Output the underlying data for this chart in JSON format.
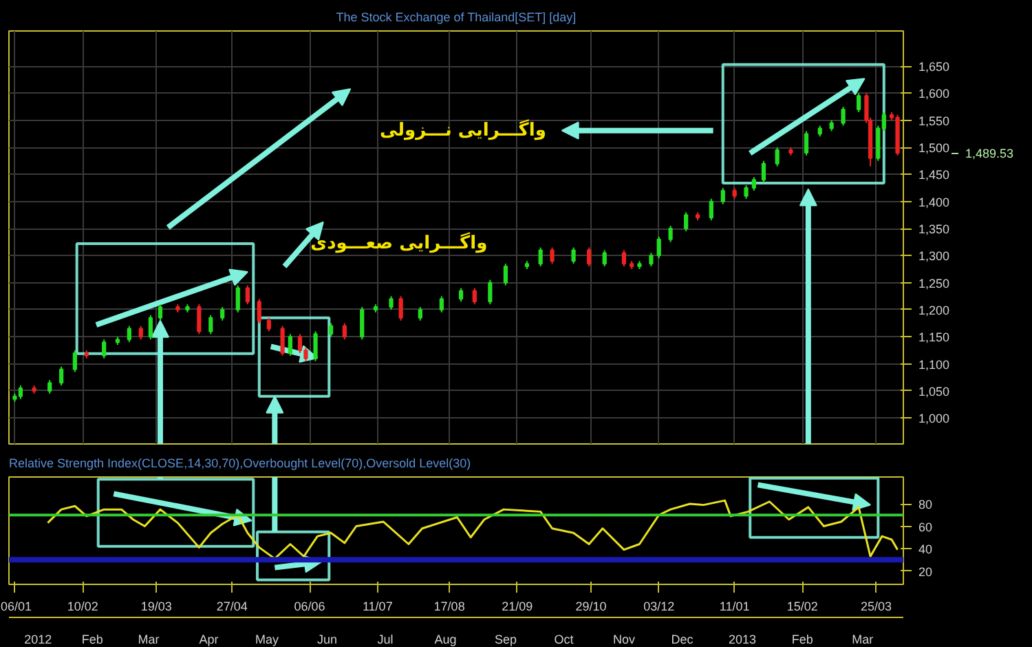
{
  "chart_data": [
    {
      "type": "candlestick",
      "title": "The Stock Exchange of Thailand[SET] [day]",
      "x": [
        "2012-01-06",
        "2012-01-09",
        "2012-01-16",
        "2012-01-24",
        "2012-01-30",
        "2012-02-06",
        "2012-02-12",
        "2012-02-21",
        "2012-02-28",
        "2012-03-05",
        "2012-03-11",
        "2012-03-16",
        "2012-03-21",
        "2012-03-30",
        "2012-04-04",
        "2012-04-10",
        "2012-04-16",
        "2012-04-22",
        "2012-04-30",
        "2012-05-05",
        "2012-05-11",
        "2012-05-16",
        "2012-05-23",
        "2012-05-27",
        "2012-06-01",
        "2012-06-04",
        "2012-06-09",
        "2012-06-17",
        "2012-06-24",
        "2012-07-03",
        "2012-07-10",
        "2012-07-18",
        "2012-07-23",
        "2012-08-02",
        "2012-08-13",
        "2012-08-23",
        "2012-08-30",
        "2012-09-07",
        "2012-09-15",
        "2012-09-26",
        "2012-10-03",
        "2012-10-09",
        "2012-10-20",
        "2012-10-28",
        "2012-11-05",
        "2012-11-15",
        "2012-11-19",
        "2012-11-23",
        "2012-11-29",
        "2012-12-03",
        "2012-12-09",
        "2012-12-17",
        "2012-12-23",
        "2012-12-30",
        "2013-01-05",
        "2013-01-11",
        "2013-01-17",
        "2013-01-21",
        "2013-01-26",
        "2013-02-02",
        "2013-02-09",
        "2013-02-17",
        "2013-02-24",
        "2013-03-02",
        "2013-03-08",
        "2013-03-16",
        "2013-03-20",
        "2013-03-22",
        "2013-03-26",
        "2013-03-29",
        "2013-04-02",
        "2013-04-05"
      ],
      "ohlc": [
        [
          1035,
          1045,
          1030,
          1040
        ],
        [
          1040,
          1060,
          1035,
          1055
        ],
        [
          1055,
          1060,
          1045,
          1050
        ],
        [
          1050,
          1070,
          1045,
          1065
        ],
        [
          1065,
          1095,
          1060,
          1090
        ],
        [
          1090,
          1125,
          1085,
          1120
        ],
        [
          1120,
          1125,
          1110,
          1115
        ],
        [
          1115,
          1145,
          1110,
          1140
        ],
        [
          1140,
          1150,
          1135,
          1145
        ],
        [
          1145,
          1170,
          1140,
          1165
        ],
        [
          1165,
          1170,
          1145,
          1150
        ],
        [
          1150,
          1190,
          1145,
          1185
        ],
        [
          1185,
          1210,
          1180,
          1205
        ],
        [
          1205,
          1210,
          1195,
          1200
        ],
        [
          1200,
          1210,
          1195,
          1205
        ],
        [
          1205,
          1210,
          1155,
          1160
        ],
        [
          1160,
          1190,
          1155,
          1185
        ],
        [
          1185,
          1205,
          1180,
          1200
        ],
        [
          1200,
          1245,
          1195,
          1240
        ],
        [
          1240,
          1245,
          1210,
          1215
        ],
        [
          1215,
          1220,
          1175,
          1180
        ],
        [
          1180,
          1185,
          1160,
          1165
        ],
        [
          1165,
          1170,
          1115,
          1120
        ],
        [
          1120,
          1155,
          1115,
          1150
        ],
        [
          1150,
          1155,
          1120,
          1125
        ],
        [
          1125,
          1130,
          1105,
          1110
        ],
        [
          1110,
          1160,
          1105,
          1155
        ],
        [
          1155,
          1175,
          1150,
          1170
        ],
        [
          1170,
          1175,
          1145,
          1150
        ],
        [
          1150,
          1205,
          1145,
          1200
        ],
        [
          1200,
          1210,
          1195,
          1205
        ],
        [
          1205,
          1225,
          1200,
          1220
        ],
        [
          1220,
          1225,
          1180,
          1185
        ],
        [
          1185,
          1205,
          1180,
          1200
        ],
        [
          1200,
          1225,
          1195,
          1220
        ],
        [
          1220,
          1240,
          1215,
          1235
        ],
        [
          1235,
          1240,
          1210,
          1215
        ],
        [
          1215,
          1255,
          1210,
          1250
        ],
        [
          1250,
          1285,
          1245,
          1280
        ],
        [
          1280,
          1290,
          1275,
          1285
        ],
        [
          1285,
          1315,
          1280,
          1310
        ],
        [
          1310,
          1315,
          1285,
          1290
        ],
        [
          1290,
          1315,
          1285,
          1310
        ],
        [
          1310,
          1315,
          1280,
          1285
        ],
        [
          1285,
          1310,
          1280,
          1305
        ],
        [
          1305,
          1310,
          1280,
          1285
        ],
        [
          1285,
          1290,
          1275,
          1280
        ],
        [
          1280,
          1290,
          1275,
          1285
        ],
        [
          1285,
          1305,
          1280,
          1300
        ],
        [
          1300,
          1335,
          1295,
          1330
        ],
        [
          1330,
          1355,
          1325,
          1350
        ],
        [
          1350,
          1380,
          1345,
          1375
        ],
        [
          1375,
          1380,
          1365,
          1370
        ],
        [
          1370,
          1405,
          1365,
          1400
        ],
        [
          1400,
          1425,
          1395,
          1420
        ],
        [
          1420,
          1425,
          1405,
          1410
        ],
        [
          1410,
          1430,
          1405,
          1425
        ],
        [
          1425,
          1445,
          1420,
          1440
        ],
        [
          1440,
          1475,
          1435,
          1470
        ],
        [
          1470,
          1500,
          1465,
          1495
        ],
        [
          1495,
          1500,
          1485,
          1490
        ],
        [
          1490,
          1530,
          1485,
          1525
        ],
        [
          1525,
          1540,
          1520,
          1535
        ],
        [
          1535,
          1550,
          1530,
          1545
        ],
        [
          1545,
          1575,
          1540,
          1570
        ],
        [
          1570,
          1600,
          1565,
          1595
        ],
        [
          1595,
          1600,
          1545,
          1550
        ],
        [
          1550,
          1555,
          1465,
          1480
        ],
        [
          1480,
          1540,
          1475,
          1535
        ],
        [
          1535,
          1565,
          1530,
          1560
        ],
        [
          1560,
          1565,
          1550,
          1555
        ],
        [
          1555,
          1560,
          1485,
          1489.53
        ]
      ],
      "colors": [
        "#22dd22",
        "#22dd22",
        "#ee2222",
        "#22dd22",
        "#22dd22",
        "#22dd22",
        "#ee2222",
        "#22dd22",
        "#22dd22",
        "#22dd22",
        "#ee2222",
        "#22dd22",
        "#22dd22",
        "#ee2222",
        "#22dd22",
        "#ee2222",
        "#22dd22",
        "#22dd22",
        "#22dd22",
        "#ee2222",
        "#ee2222",
        "#ee2222",
        "#ee2222",
        "#22dd22",
        "#ee2222",
        "#ee2222",
        "#22dd22",
        "#22dd22",
        "#ee2222",
        "#22dd22",
        "#22dd22",
        "#22dd22",
        "#ee2222",
        "#22dd22",
        "#22dd22",
        "#22dd22",
        "#ee2222",
        "#22dd22",
        "#22dd22",
        "#22dd22",
        "#22dd22",
        "#ee2222",
        "#22dd22",
        "#ee2222",
        "#22dd22",
        "#ee2222",
        "#ee2222",
        "#22dd22",
        "#22dd22",
        "#22dd22",
        "#22dd22",
        "#22dd22",
        "#ee2222",
        "#22dd22",
        "#22dd22",
        "#ee2222",
        "#22dd22",
        "#22dd22",
        "#22dd22",
        "#22dd22",
        "#ee2222",
        "#22dd22",
        "#22dd22",
        "#22dd22",
        "#22dd22",
        "#22dd22",
        "#ee2222",
        "#ee2222",
        "#22dd22",
        "#22dd22",
        "#ee2222",
        "#ee2222"
      ],
      "xlim": [
        "2012-01-03",
        "2013-04-08"
      ],
      "xticks": [
        {
          "value": "2012-01-06",
          "label": null
        },
        {
          "value": "2012-02-10",
          "label": null
        },
        {
          "value": "2012-03-19",
          "label": null
        },
        {
          "value": "2012-04-27",
          "label": null
        },
        {
          "value": "2012-06-06",
          "label": null
        },
        {
          "value": "2012-07-11",
          "label": null
        },
        {
          "value": "2012-08-17",
          "label": null
        },
        {
          "value": "2012-09-21",
          "label": null
        },
        {
          "value": "2012-10-29",
          "label": null
        },
        {
          "value": "2012-12-03",
          "label": null
        },
        {
          "value": "2013-01-11",
          "label": null
        },
        {
          "value": "2013-02-15",
          "label": null
        },
        {
          "value": "2013-03-25",
          "label": null
        }
      ],
      "ylim": [
        952,
        1715
      ],
      "yticks": [
        {
          "value": 1000,
          "label": "1,000"
        },
        {
          "value": 1050,
          "label": "1,050"
        },
        {
          "value": 1100,
          "label": "1,100"
        },
        {
          "value": 1150,
          "label": "1,150"
        },
        {
          "value": 1200,
          "label": "1,200"
        },
        {
          "value": 1250,
          "label": "1,250"
        },
        {
          "value": 1300,
          "label": "1,300"
        },
        {
          "value": 1350,
          "label": "1,350"
        },
        {
          "value": 1400,
          "label": "1,400"
        },
        {
          "value": 1450,
          "label": "1,450"
        },
        {
          "value": 1500,
          "label": "1,500"
        },
        {
          "value": 1550,
          "label": "1,550"
        },
        {
          "value": 1600,
          "label": "1,600"
        },
        {
          "value": 1650,
          "label": "1,650"
        }
      ],
      "tick_labels": "y",
      "grid": true,
      "annotations": [
        "واگـــرایی نـــزولی",
        "واگـــرایی صعـــودی",
        "1,489.53"
      ]
    },
    {
      "type": "line",
      "title": "Relative Strength Index(CLOSE,14,30,70),Overbought Level(70),Oversold Level(30)",
      "series": [
        {
          "color": "#e8e020",
          "x": [
            "2012-01-23",
            "2012-01-30",
            "2012-02-06",
            "2012-02-12",
            "2012-02-21",
            "2012-03-01",
            "2012-03-07",
            "2012-03-13",
            "2012-03-21",
            "2012-03-30",
            "2012-04-10",
            "2012-04-16",
            "2012-04-22",
            "2012-04-30",
            "2012-05-05",
            "2012-05-11",
            "2012-05-19",
            "2012-05-27",
            "2012-06-03",
            "2012-06-10",
            "2012-06-17",
            "2012-06-24",
            "2012-06-30",
            "2012-07-14",
            "2012-07-27",
            "2012-08-03",
            "2012-08-21",
            "2012-08-28",
            "2012-09-04",
            "2012-09-14",
            "2012-10-03",
            "2012-10-09",
            "2012-10-20",
            "2012-10-28",
            "2012-11-04",
            "2012-11-15",
            "2012-11-23",
            "2012-12-03",
            "2012-12-09",
            "2012-12-19",
            "2012-12-26",
            "2013-01-06",
            "2013-01-09",
            "2013-01-18",
            "2013-01-29",
            "2013-02-08",
            "2013-02-18",
            "2013-02-26",
            "2013-03-07",
            "2013-03-16",
            "2013-03-22",
            "2013-03-28",
            "2013-04-02",
            "2013-04-05"
          ],
          "values": [
            63,
            75,
            78,
            69,
            75,
            75,
            66,
            60,
            75,
            63,
            41,
            54,
            62,
            70,
            54,
            41,
            31,
            44,
            33,
            51,
            54,
            45,
            60,
            64,
            44,
            58,
            68,
            50,
            66,
            75,
            73,
            58,
            54,
            44,
            58,
            39,
            44,
            70,
            75,
            80,
            79,
            83,
            69,
            73,
            82,
            66,
            77,
            60,
            64,
            77,
            33,
            51,
            48,
            39
          ]
        }
      ],
      "xlim": [
        "2012-01-03",
        "2013-04-08"
      ],
      "xticks": [
        {
          "value": "2012-01-06",
          "label": "06/01"
        },
        {
          "value": "2012-02-10",
          "label": "10/02"
        },
        {
          "value": "2012-03-19",
          "label": "19/03"
        },
        {
          "value": "2012-04-27",
          "label": "27/04"
        },
        {
          "value": "2012-06-06",
          "label": "06/06"
        },
        {
          "value": "2012-07-11",
          "label": "11/07"
        },
        {
          "value": "2012-08-17",
          "label": "17/08"
        },
        {
          "value": "2012-09-21",
          "label": "21/09"
        },
        {
          "value": "2012-10-29",
          "label": "29/10"
        },
        {
          "value": "2012-12-03",
          "label": "03/12"
        },
        {
          "value": "2013-01-11",
          "label": "11/01"
        },
        {
          "value": "2013-02-15",
          "label": "15/02"
        },
        {
          "value": "2013-03-25",
          "label": "25/03"
        }
      ],
      "x2lim": [
        "2012-01-03",
        "2013-04-08"
      ],
      "x2ticks": [
        {
          "value": "2012-01-18",
          "label": "2012"
        },
        {
          "value": "2012-02-15",
          "label": "Feb"
        },
        {
          "value": "2012-03-15",
          "label": "Mar"
        },
        {
          "value": "2012-04-15",
          "label": "Apr"
        },
        {
          "value": "2012-05-15",
          "label": "May"
        },
        {
          "value": "2012-06-15",
          "label": "Jun"
        },
        {
          "value": "2012-07-15",
          "label": "Jul"
        },
        {
          "value": "2012-08-15",
          "label": "Aug"
        },
        {
          "value": "2012-09-15",
          "label": "Sep"
        },
        {
          "value": "2012-10-15",
          "label": "Oct"
        },
        {
          "value": "2012-11-15",
          "label": "Nov"
        },
        {
          "value": "2012-12-15",
          "label": "Dec"
        },
        {
          "value": "2013-01-15",
          "label": "2013"
        },
        {
          "value": "2013-02-15",
          "label": "Feb"
        },
        {
          "value": "2013-03-18",
          "label": "Mar"
        }
      ],
      "ylim": [
        8,
        104
      ],
      "yticks": [
        20,
        40,
        60,
        80
      ],
      "ref_lines": [
        {
          "axis": "y",
          "value": 70,
          "color": "#33cc33"
        },
        {
          "axis": "y",
          "value": 30,
          "color": "#1a1ab0"
        }
      ]
    }
  ]
}
